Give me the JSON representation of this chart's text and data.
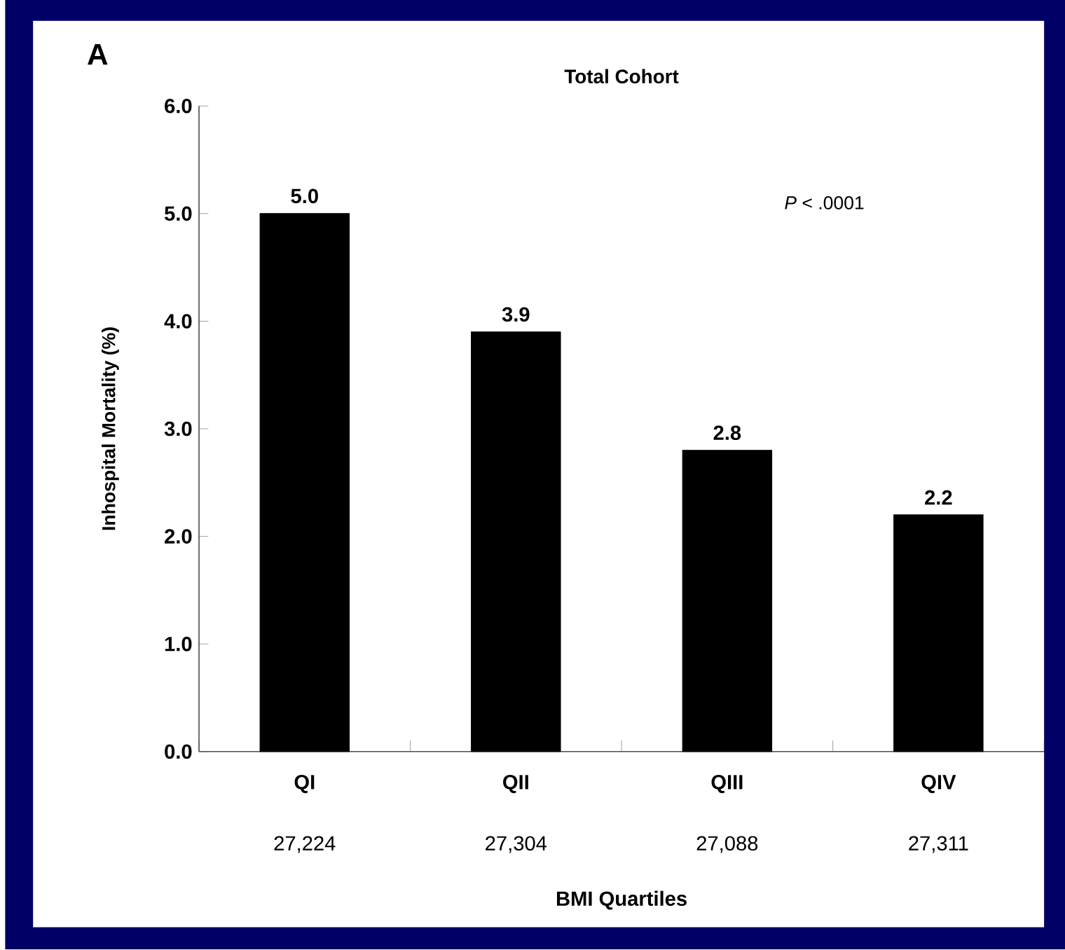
{
  "chart_data": {
    "type": "bar",
    "title": "Total Cohort",
    "xlabel": "BMI Quartiles",
    "ylabel": "Inhospital Mortality (%)",
    "categories": [
      "QI",
      "QII",
      "QIII",
      "QIV"
    ],
    "values": [
      5.0,
      3.9,
      2.8,
      2.2
    ],
    "value_labels": [
      "5.0",
      "3.9",
      "2.8",
      "2.2"
    ],
    "color": "#000000",
    "ylim": [
      0,
      6
    ],
    "yticks": [
      {
        "value": 0,
        "label": "0.0"
      },
      {
        "value": 1,
        "label": "1.0"
      },
      {
        "value": 2,
        "label": "2.0"
      },
      {
        "value": 3,
        "label": "3.0"
      },
      {
        "value": 4,
        "label": "4.0"
      },
      {
        "value": 5,
        "label": "5.0"
      },
      {
        "value": 6,
        "label": "6.0"
      }
    ],
    "annotations": [
      "A",
      "*P* < .0001",
      "27,224",
      "27,304",
      "27,088",
      "27,311"
    ]
  }
}
